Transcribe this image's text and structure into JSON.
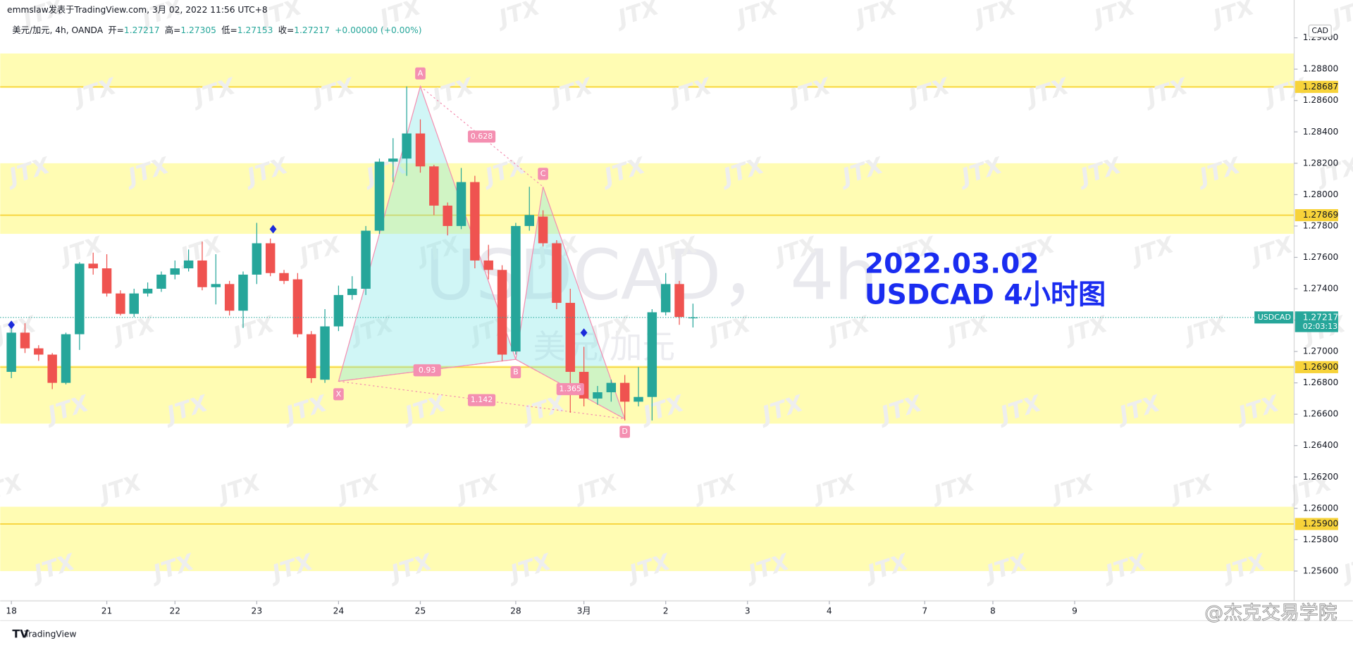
{
  "header": {
    "byline": "emmslaw发表于TradingView.com, 3月 02, 2022 11:56 UTC+8"
  },
  "watermark": "JTX",
  "chart_data": {
    "type": "candlestick",
    "symbol_info": "美元/加元, 4h, OANDA",
    "legend_labels": {
      "open": "开=",
      "high": "高=",
      "low": "低=",
      "close": "收="
    },
    "change": "+0.00000 (+0.00%)",
    "currency": "CAD",
    "watermark_symbol": "USDCAD，4h",
    "watermark_name": "美元/加元",
    "annotation": [
      "2022.03.02",
      "USDCAD 4小时图"
    ],
    "up_color": "#26a69a",
    "down_color": "#ef5350",
    "open": [
      1.2687,
      1.2712,
      1.2702,
      1.2698,
      1.268,
      1.2711,
      1.2756,
      1.2753,
      1.2737,
      1.2724,
      1.2737,
      1.274,
      1.2749,
      1.2753,
      1.2758,
      1.2741,
      1.2743,
      1.2726,
      1.2749,
      1.2769,
      1.275,
      1.2746,
      1.2711,
      1.2682,
      1.2716,
      1.2736,
      1.274,
      1.2777,
      1.2821,
      1.2823,
      1.2839,
      1.2818,
      1.2793,
      1.278,
      1.2808,
      1.2758,
      1.2752,
      1.27,
      1.278,
      1.2786,
      1.2769,
      1.2731,
      1.2687,
      1.267,
      1.2674,
      1.268,
      1.2668,
      1.2671,
      1.2725,
      1.2743,
      1.27217
    ],
    "close": [
      1.2712,
      1.2702,
      1.2698,
      1.268,
      1.2711,
      1.2756,
      1.2753,
      1.2737,
      1.2724,
      1.2737,
      1.274,
      1.2749,
      1.2753,
      1.2758,
      1.2741,
      1.2743,
      1.2726,
      1.2749,
      1.2769,
      1.275,
      1.2745,
      1.2711,
      1.2683,
      1.2716,
      1.2736,
      1.274,
      1.2777,
      1.2821,
      1.2823,
      1.2839,
      1.2818,
      1.2793,
      1.278,
      1.2808,
      1.2758,
      1.2752,
      1.2698,
      1.278,
      1.2787,
      1.2769,
      1.2731,
      1.2687,
      1.267,
      1.2674,
      1.268,
      1.2668,
      1.2671,
      1.2725,
      1.2743,
      1.2722,
      1.27217
    ],
    "high": [
      1.2718,
      1.2718,
      1.2704,
      1.2699,
      1.2712,
      1.2757,
      1.2763,
      1.2762,
      1.2739,
      1.274,
      1.2744,
      1.2751,
      1.2758,
      1.2765,
      1.277,
      1.2762,
      1.2745,
      1.2751,
      1.2782,
      1.2772,
      1.2752,
      1.275,
      1.2713,
      1.2727,
      1.2742,
      1.2748,
      1.278,
      1.2823,
      1.2836,
      1.2869,
      1.2848,
      1.2819,
      1.2795,
      1.2817,
      1.2812,
      1.2768,
      1.2755,
      1.2782,
      1.2805,
      1.279,
      1.2771,
      1.274,
      1.2703,
      1.2678,
      1.2682,
      1.2685,
      1.269,
      1.2727,
      1.275,
      1.2745,
      1.27305
    ],
    "low": [
      1.2683,
      1.2699,
      1.2694,
      1.2676,
      1.2679,
      1.2701,
      1.2749,
      1.2735,
      1.2723,
      1.2722,
      1.2735,
      1.2738,
      1.2746,
      1.2751,
      1.2739,
      1.273,
      1.2723,
      1.2715,
      1.2743,
      1.2748,
      1.2743,
      1.2709,
      1.268,
      1.268,
      1.2713,
      1.2733,
      1.2736,
      1.2775,
      1.2808,
      1.2812,
      1.2814,
      1.2787,
      1.2774,
      1.2778,
      1.2753,
      1.2746,
      1.2694,
      1.2698,
      1.2777,
      1.2767,
      1.2727,
      1.2661,
      1.2665,
      1.2666,
      1.2668,
      1.2656,
      1.2665,
      1.2656,
      1.2723,
      1.2717,
      1.27153
    ],
    "xlim": [
      -0.82,
      94.1
    ],
    "xticks": [
      {
        "value": 0,
        "label": "18"
      },
      {
        "value": 7,
        "label": "21"
      },
      {
        "value": 12,
        "label": "22"
      },
      {
        "value": 18,
        "label": "23"
      },
      {
        "value": 24,
        "label": "24"
      },
      {
        "value": 30,
        "label": "25"
      },
      {
        "value": 37,
        "label": "28"
      },
      {
        "value": 42,
        "label": "3月"
      },
      {
        "value": 48,
        "label": "2"
      },
      {
        "value": 54,
        "label": "3"
      },
      {
        "value": 60,
        "label": "4"
      },
      {
        "value": 67,
        "label": "7"
      },
      {
        "value": 72,
        "label": "8"
      },
      {
        "value": 78,
        "label": "9"
      }
    ],
    "ylim": [
      1.2541,
      1.2912
    ],
    "yticks": [
      {
        "value": 1.256,
        "label": "1.25600"
      },
      {
        "value": 1.258,
        "label": "1.25800"
      },
      {
        "value": 1.26,
        "label": "1.26000"
      },
      {
        "value": 1.262,
        "label": "1.26200"
      },
      {
        "value": 1.264,
        "label": "1.26400"
      },
      {
        "value": 1.266,
        "label": "1.26600"
      },
      {
        "value": 1.268,
        "label": "1.26800"
      },
      {
        "value": 1.27,
        "label": "1.27000"
      },
      {
        "value": 1.272,
        "label": "1.27200"
      },
      {
        "value": 1.274,
        "label": "1.27400"
      },
      {
        "value": 1.276,
        "label": "1.27600"
      },
      {
        "value": 1.278,
        "label": "1.27800"
      },
      {
        "value": 1.28,
        "label": "1.28000"
      },
      {
        "value": 1.282,
        "label": "1.28200"
      },
      {
        "value": 1.284,
        "label": "1.28400"
      },
      {
        "value": 1.286,
        "label": "1.28600"
      },
      {
        "value": 1.288,
        "label": "1.28800"
      },
      {
        "value": 1.29,
        "label": "1.29000"
      }
    ],
    "zones": [
      [
        1.2868,
        1.289
      ],
      [
        1.2775,
        1.282
      ],
      [
        1.2654,
        1.2691
      ],
      [
        1.256,
        1.2601
      ]
    ],
    "zone_color": "#fffcb3",
    "level_color": "#f7d33a",
    "levels": [
      1.28687,
      1.27869,
      {
        "value": 1.269,
        "label": "1.26900"
      },
      {
        "value": 1.259,
        "label": "1.25900"
      }
    ],
    "last_price": {
      "symbol": "USDCAD",
      "value": 1.27217,
      "countdown": "02:03:13"
    },
    "pattern": {
      "color": "#f48fb1",
      "points": [
        {
          "label": "X",
          "x": 24,
          "y": 1.2681
        },
        {
          "label": "A",
          "x": 30,
          "y": 1.2869
        },
        {
          "label": "B",
          "x": 37,
          "y": 1.2695
        },
        {
          "label": "C",
          "x": 39,
          "y": 1.2805
        },
        {
          "label": "D",
          "x": 45,
          "y": 1.2657
        }
      ],
      "ratios": [
        0.628,
        0.93,
        1.142,
        1.365
      ]
    },
    "signals": [
      {
        "x": 0,
        "y": 1.2717
      },
      {
        "x": 19.2,
        "y": 1.2778
      },
      {
        "x": 42,
        "y": 1.2712
      }
    ]
  },
  "footer": {
    "brand": "TradingView",
    "credit": "@杰克交易学院"
  }
}
